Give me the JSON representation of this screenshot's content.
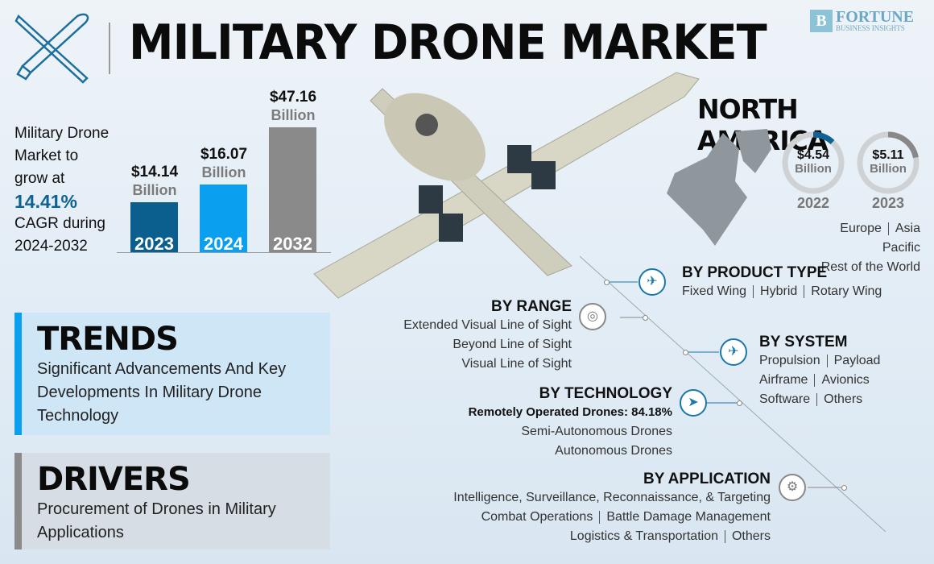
{
  "header": {
    "title": "MILITARY DRONE MARKET",
    "logo_line1": "FORTUNE",
    "logo_line2": "BUSINESS INSIGHTS",
    "logo_letter": "B"
  },
  "cagr": {
    "line1": "Military Drone",
    "line2": "Market to",
    "line3": "grow at",
    "value": "14.41%",
    "line4": "CAGR during",
    "line5": "2024-2032"
  },
  "chart_data": {
    "type": "bar",
    "categories": [
      "2023",
      "2024",
      "2032"
    ],
    "values": [
      14.14,
      16.07,
      47.16
    ],
    "value_labels": [
      "$14.14",
      "$16.07",
      "$47.16"
    ],
    "unit": "Billion",
    "colors": [
      "#0b5f8f",
      "#0aa0ef",
      "#8a8a8a"
    ]
  },
  "trends": {
    "heading": "TRENDS",
    "text": "Significant Advancements And Key Developments In Military Drone Technology"
  },
  "drivers": {
    "heading": "DRIVERS",
    "text": "Procurement of Drones in Military Applications"
  },
  "region": {
    "title": "NORTH AMERICA",
    "rings": [
      {
        "value": "$4.54",
        "unit": "Billion",
        "year": "2022",
        "color": "#0f6294"
      },
      {
        "value": "$5.11",
        "unit": "Billion",
        "year": "2023",
        "color": "#888888"
      }
    ],
    "others_1a": "Europe",
    "others_1b": "Asia Pacific",
    "others_2": "Rest of the World"
  },
  "segments": {
    "product": {
      "title": "BY PRODUCT TYPE",
      "items": [
        "Fixed Wing",
        "Hybrid",
        "Rotary Wing"
      ]
    },
    "range": {
      "title": "BY RANGE",
      "items": [
        "Extended Visual Line of Sight",
        "Beyond Line of Sight",
        "Visual Line of Sight"
      ]
    },
    "system": {
      "title": "BY SYSTEM",
      "items": [
        "Propulsion",
        "Payload",
        "Airframe",
        "Avionics",
        "Software",
        "Others"
      ]
    },
    "technology": {
      "title": "BY TECHNOLOGY",
      "highlight": "Remotely Operated Drones: 84.18%",
      "items": [
        "Semi-Autonomous Drones",
        "Autonomous Drones"
      ]
    },
    "application": {
      "title": "BY APPLICATION",
      "items": [
        "Intelligence, Surveillance, Reconnaissance, & Targeting",
        "Combat Operations",
        "Battle Damage Management",
        "Logistics & Transportation",
        "Others"
      ]
    }
  }
}
